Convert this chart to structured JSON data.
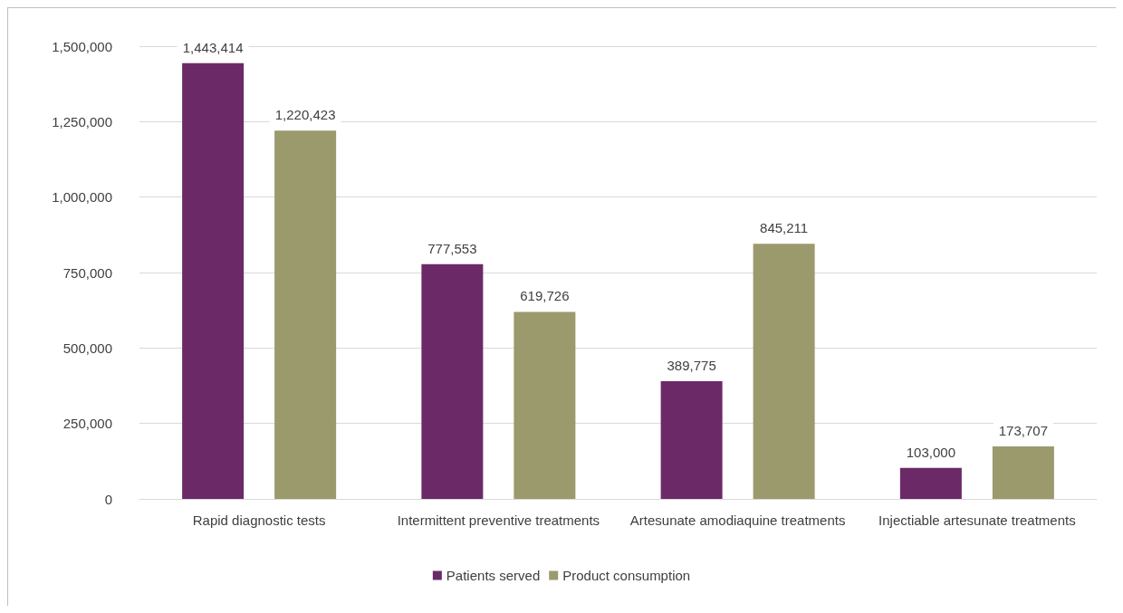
{
  "chart_data": {
    "type": "bar",
    "categories": [
      "Rapid diagnostic tests",
      "Intermittent preventive treatments",
      "Artesunate amodiaquine treatments",
      "Injectiable artesunate treatments"
    ],
    "series": [
      {
        "name": "Patients served",
        "color": "#6b2a67",
        "values": [
          1443414,
          777553,
          389775,
          103000
        ],
        "value_labels": [
          "1,443,414",
          "777,553",
          "389,775",
          "103,000"
        ]
      },
      {
        "name": "Product consumption",
        "color": "#9b9a6c",
        "values": [
          1220423,
          619726,
          845211,
          173707
        ],
        "value_labels": [
          "1,220,423",
          "619,726",
          "845,211",
          "173,707"
        ]
      }
    ],
    "ylim": [
      0,
      1500000
    ],
    "yticks": [
      0,
      {
        "value": 250000,
        "label": "250,000"
      },
      {
        "value": 500000,
        "label": "500,000"
      },
      {
        "value": 750000,
        "label": "750,000"
      },
      {
        "value": 1000000,
        "label": "1,000,000"
      },
      {
        "value": 1250000,
        "label": "1,250,000"
      },
      {
        "value": 1500000,
        "label": "1,500,000"
      }
    ],
    "grid": "y",
    "legend": "bottom"
  }
}
